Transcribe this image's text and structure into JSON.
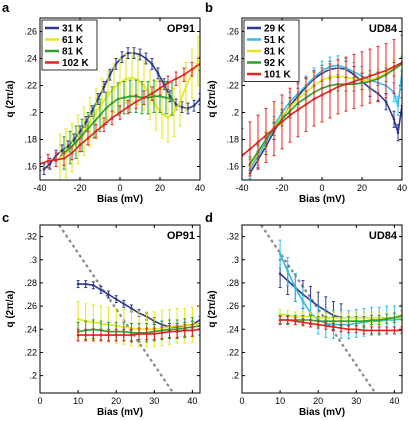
{
  "chart_data": [
    {
      "panel": "a",
      "type": "line",
      "sample_label": "OP91",
      "xlabel": "Bias (mV)",
      "ylabel": "q (2π/a)",
      "xlim": [
        -40,
        40
      ],
      "ylim": [
        0.15,
        0.27
      ],
      "xticks": [
        -40,
        -20,
        0,
        20,
        40
      ],
      "yticks": [
        0.16,
        0.18,
        0.2,
        0.22,
        0.24,
        0.26
      ],
      "legend": "top-left",
      "series": [
        {
          "name": "31 K",
          "color": "#2d3a8c",
          "x": [
            -38,
            -35,
            -32,
            -29,
            -26,
            -23,
            -20,
            -17,
            -14,
            -11,
            -8,
            -5,
            -2,
            1,
            4,
            7,
            10,
            13,
            16,
            19,
            22,
            25,
            28,
            31,
            34,
            37,
            40
          ],
          "y": [
            0.158,
            0.162,
            0.168,
            0.172,
            0.175,
            0.18,
            0.186,
            0.193,
            0.201,
            0.21,
            0.219,
            0.228,
            0.236,
            0.241,
            0.244,
            0.244,
            0.243,
            0.24,
            0.236,
            0.229,
            0.221,
            0.212,
            0.206,
            0.204,
            0.203,
            0.205,
            0.21
          ],
          "err": 0.004
        },
        {
          "name": "61 K",
          "color": "#e6e619",
          "x": [
            -30,
            -27,
            -24,
            -21,
            -18,
            -15,
            -12,
            -9,
            -6,
            -3,
            0,
            3,
            6,
            9,
            12,
            15,
            18,
            21,
            24,
            27,
            30,
            33,
            36,
            39
          ],
          "y": [
            0.166,
            0.17,
            0.174,
            0.18,
            0.186,
            0.193,
            0.2,
            0.207,
            0.213,
            0.218,
            0.222,
            0.225,
            0.226,
            0.224,
            0.22,
            0.213,
            0.205,
            0.199,
            0.196,
            0.2,
            0.208,
            0.219,
            0.229,
            0.238
          ],
          "err": 0.018
        },
        {
          "name": "81 K",
          "color": "#2ca02c",
          "x": [
            -28,
            -25,
            -22,
            -19,
            -16,
            -13,
            -10,
            -7,
            -4,
            -1,
            2,
            5,
            8,
            11,
            14,
            17,
            20,
            23,
            26
          ],
          "y": [
            0.17,
            0.174,
            0.178,
            0.183,
            0.188,
            0.193,
            0.198,
            0.203,
            0.207,
            0.21,
            0.211,
            0.212,
            0.212,
            0.211,
            0.211,
            0.212,
            0.212,
            0.211,
            0.21
          ],
          "err": 0.012
        },
        {
          "name": "102 K",
          "color": "#e0241f",
          "x": [
            -40,
            -36,
            -32,
            -28,
            -24,
            -20,
            -16,
            -12,
            -8,
            -4,
            0,
            4,
            8,
            12,
            16,
            20,
            24,
            28,
            32,
            36,
            40
          ],
          "y": [
            0.162,
            0.164,
            0.165,
            0.166,
            0.17,
            0.176,
            0.181,
            0.186,
            0.191,
            0.196,
            0.2,
            0.204,
            0.208,
            0.211,
            0.214,
            0.218,
            0.222,
            0.225,
            0.228,
            0.232,
            0.236
          ],
          "err": 0.005
        }
      ]
    },
    {
      "panel": "b",
      "type": "line",
      "sample_label": "UD84",
      "xlabel": "Bias (mV)",
      "ylabel": "q (2π/a)",
      "xlim": [
        -40,
        40
      ],
      "ylim": [
        0.15,
        0.27
      ],
      "xticks": [
        -40,
        -20,
        0,
        20,
        40
      ],
      "yticks": [
        0.16,
        0.18,
        0.2,
        0.22,
        0.24,
        0.26
      ],
      "legend": "top-left",
      "series": [
        {
          "name": "29 K",
          "color": "#2d3a8c",
          "x": [
            -36,
            -32,
            -28,
            -24,
            -20,
            -16,
            -12,
            -8,
            -4,
            0,
            4,
            8,
            12,
            16,
            20,
            24,
            28,
            32,
            36,
            38,
            40
          ],
          "y": [
            0.155,
            0.165,
            0.175,
            0.186,
            0.196,
            0.205,
            0.212,
            0.219,
            0.225,
            0.229,
            0.232,
            0.233,
            0.232,
            0.228,
            0.223,
            0.218,
            0.214,
            0.208,
            0.195,
            0.185,
            0.205
          ],
          "err": 0.006
        },
        {
          "name": "51 K",
          "color": "#33bbee",
          "x": [
            -36,
            -32,
            -28,
            -24,
            -20,
            -16,
            -12,
            -8,
            -4,
            0,
            4,
            8,
            12,
            16,
            20,
            24,
            28,
            32,
            36,
            38,
            40
          ],
          "y": [
            0.158,
            0.168,
            0.178,
            0.19,
            0.2,
            0.208,
            0.214,
            0.22,
            0.226,
            0.231,
            0.234,
            0.235,
            0.233,
            0.23,
            0.227,
            0.224,
            0.222,
            0.22,
            0.215,
            0.205,
            0.23
          ],
          "err": 0.007
        },
        {
          "name": "81 K",
          "color": "#e6e619",
          "x": [
            -36,
            -32,
            -28,
            -24,
            -20,
            -16,
            -12,
            -8,
            -4,
            0,
            4,
            8,
            12,
            16,
            20,
            24,
            28,
            32,
            36,
            40
          ],
          "y": [
            0.16,
            0.17,
            0.18,
            0.189,
            0.197,
            0.204,
            0.21,
            0.215,
            0.22,
            0.224,
            0.226,
            0.227,
            0.226,
            0.225,
            0.224,
            0.224,
            0.226,
            0.229,
            0.233,
            0.236
          ],
          "err": 0.006
        },
        {
          "name": "92 K",
          "color": "#2ca02c",
          "x": [
            -36,
            -32,
            -28,
            -24,
            -20,
            -16,
            -12,
            -8,
            -4,
            0,
            4,
            8,
            12,
            16,
            20,
            24,
            28,
            32,
            36,
            40
          ],
          "y": [
            0.162,
            0.171,
            0.18,
            0.188,
            0.195,
            0.201,
            0.207,
            0.211,
            0.215,
            0.218,
            0.22,
            0.221,
            0.221,
            0.221,
            0.222,
            0.223,
            0.225,
            0.228,
            0.232,
            0.236
          ],
          "err": 0.005
        },
        {
          "name": "101 K",
          "color": "#e0241f",
          "x": [
            -40,
            -36,
            -32,
            -28,
            -24,
            -20,
            -16,
            -12,
            -8,
            -4,
            0,
            4,
            8,
            12,
            16,
            20,
            24,
            28,
            32,
            36,
            40
          ],
          "y": [
            0.168,
            0.173,
            0.178,
            0.183,
            0.188,
            0.193,
            0.198,
            0.202,
            0.206,
            0.21,
            0.213,
            0.216,
            0.219,
            0.221,
            0.223,
            0.225,
            0.227,
            0.229,
            0.231,
            0.234,
            0.237
          ],
          "err": 0.02
        }
      ]
    },
    {
      "panel": "c",
      "type": "line",
      "sample_label": "OP91",
      "xlabel": "Bias (mV)",
      "ylabel": "q (2π/a)",
      "xlim": [
        0,
        42
      ],
      "ylim": [
        0.185,
        0.33
      ],
      "xticks": [
        0,
        10,
        20,
        30,
        40
      ],
      "yticks": [
        0.2,
        0.22,
        0.24,
        0.26,
        0.28,
        0.3,
        0.32
      ],
      "guide_line": {
        "color": "#888888",
        "x": [
          5,
          35
        ],
        "y": [
          0.33,
          0.185
        ]
      },
      "series": [
        {
          "color": "#2d3a8c",
          "x": [
            10,
            12,
            14,
            16,
            18,
            20,
            22,
            24,
            26,
            28,
            30,
            32,
            34,
            36,
            38,
            40,
            42
          ],
          "y": [
            0.279,
            0.279,
            0.278,
            0.274,
            0.27,
            0.266,
            0.262,
            0.258,
            0.254,
            0.251,
            0.247,
            0.244,
            0.242,
            0.242,
            0.243,
            0.244,
            0.248
          ],
          "err": 0.003
        },
        {
          "color": "#e6e619",
          "x": [
            10,
            12,
            14,
            16,
            18,
            20,
            22,
            24,
            26,
            28,
            30,
            32,
            34,
            36,
            38,
            40,
            42
          ],
          "y": [
            0.249,
            0.247,
            0.246,
            0.245,
            0.244,
            0.243,
            0.242,
            0.241,
            0.24,
            0.24,
            0.24,
            0.241,
            0.242,
            0.243,
            0.243,
            0.244,
            0.245
          ],
          "err": 0.015
        },
        {
          "color": "#2ca02c",
          "x": [
            10,
            12,
            14,
            16,
            18,
            20,
            22,
            24,
            26,
            28,
            30,
            32,
            34,
            36,
            38,
            40,
            42
          ],
          "y": [
            0.238,
            0.239,
            0.24,
            0.239,
            0.238,
            0.238,
            0.238,
            0.237,
            0.237,
            0.237,
            0.238,
            0.239,
            0.24,
            0.24,
            0.241,
            0.242,
            0.243
          ],
          "err": 0.008
        },
        {
          "color": "#e0241f",
          "x": [
            10,
            12,
            14,
            16,
            18,
            20,
            22,
            24,
            26,
            28,
            30,
            32,
            34,
            36,
            38,
            40,
            42
          ],
          "y": [
            0.235,
            0.235,
            0.235,
            0.235,
            0.235,
            0.235,
            0.235,
            0.235,
            0.236,
            0.236,
            0.236,
            0.237,
            0.238,
            0.238,
            0.239,
            0.239,
            0.24
          ],
          "err": 0.005
        }
      ]
    },
    {
      "panel": "d",
      "type": "line",
      "sample_label": "UD84",
      "xlabel": "Bias (mV)",
      "ylabel": "q (2π/a)",
      "xlim": [
        0,
        42
      ],
      "ylim": [
        0.185,
        0.33
      ],
      "xticks": [
        0,
        10,
        20,
        30,
        40
      ],
      "yticks": [
        0.2,
        0.22,
        0.24,
        0.26,
        0.28,
        0.3,
        0.32
      ],
      "guide_line": {
        "color": "#888888",
        "x": [
          5,
          35
        ],
        "y": [
          0.33,
          0.185
        ]
      },
      "series": [
        {
          "color": "#2d3a8c",
          "x": [
            10,
            12,
            14,
            16,
            18,
            20,
            22,
            24,
            26
          ],
          "y": [
            0.288,
            0.282,
            0.276,
            0.27,
            0.265,
            0.26,
            0.256,
            0.252,
            0.25
          ],
          "err": 0.012
        },
        {
          "color": "#33bbee",
          "x": [
            10,
            12,
            14,
            16,
            18,
            20,
            22,
            24,
            26,
            28,
            30,
            32,
            34,
            36,
            38,
            40,
            42
          ],
          "y": [
            0.305,
            0.29,
            0.276,
            0.264,
            0.254,
            0.248,
            0.245,
            0.244,
            0.244,
            0.244,
            0.245,
            0.246,
            0.247,
            0.247,
            0.248,
            0.248,
            0.249
          ],
          "err": 0.012
        },
        {
          "color": "#e6e619",
          "x": [
            10,
            12,
            14,
            16,
            18,
            20,
            22,
            24,
            26,
            28,
            30,
            32,
            34,
            36,
            38,
            40,
            42
          ],
          "y": [
            0.253,
            0.252,
            0.251,
            0.251,
            0.251,
            0.25,
            0.25,
            0.25,
            0.25,
            0.25,
            0.25,
            0.25,
            0.25,
            0.25,
            0.25,
            0.25,
            0.25
          ],
          "err": 0.004
        },
        {
          "color": "#2ca02c",
          "x": [
            10,
            12,
            14,
            16,
            18,
            20,
            22,
            24,
            26,
            28,
            30,
            32,
            34,
            36,
            38,
            40,
            42
          ],
          "y": [
            0.248,
            0.248,
            0.248,
            0.248,
            0.248,
            0.247,
            0.247,
            0.247,
            0.247,
            0.247,
            0.247,
            0.247,
            0.248,
            0.248,
            0.249,
            0.25,
            0.252
          ],
          "err": 0.004
        },
        {
          "color": "#e0241f",
          "x": [
            10,
            12,
            14,
            16,
            18,
            20,
            22,
            24,
            26,
            28,
            30,
            32,
            34,
            36,
            38,
            40,
            42
          ],
          "y": [
            0.248,
            0.248,
            0.247,
            0.246,
            0.245,
            0.244,
            0.243,
            0.242,
            0.241,
            0.24,
            0.24,
            0.239,
            0.239,
            0.239,
            0.239,
            0.239,
            0.239
          ],
          "err": 0.003
        }
      ]
    }
  ]
}
